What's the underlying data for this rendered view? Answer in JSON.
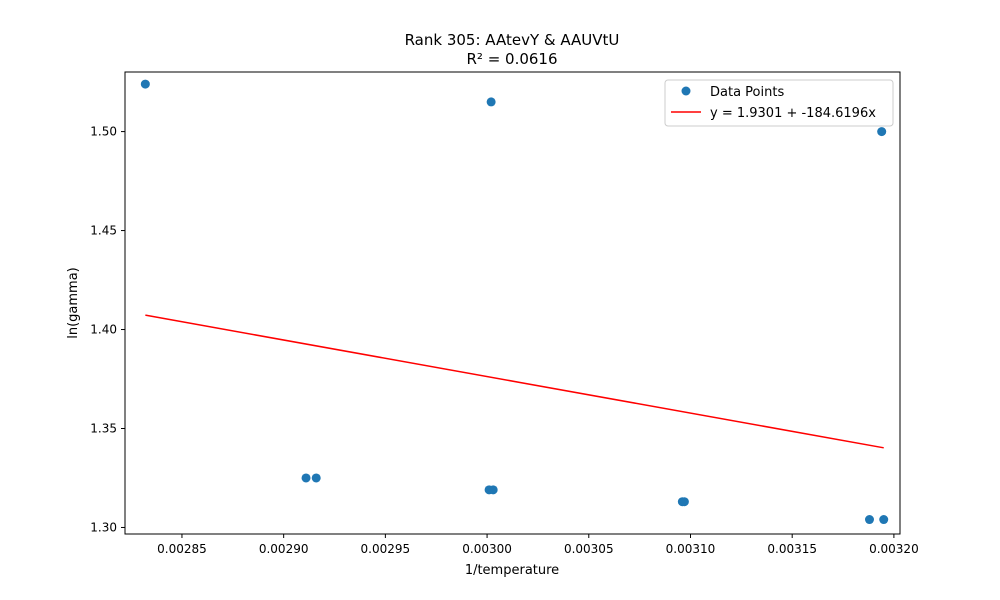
{
  "chart_data": {
    "type": "scatter",
    "title": "Rank 305: AAtevY & AAUVtU",
    "subtitle": "R² = 0.0616",
    "xlabel": "1/temperature",
    "ylabel": "ln(gamma)",
    "xlim": [
      0.002822,
      0.003203
    ],
    "ylim": [
      1.2967,
      1.5301
    ],
    "x_ticks": [
      0.00285,
      0.0029,
      0.00295,
      0.003,
      0.00305,
      0.0031,
      0.00315,
      0.0032
    ],
    "x_tick_labels": [
      "0.00285",
      "0.00290",
      "0.00295",
      "0.00300",
      "0.00305",
      "0.00310",
      "0.00315",
      "0.00320"
    ],
    "y_ticks": [
      1.3,
      1.35,
      1.4,
      1.45,
      1.5
    ],
    "y_tick_labels": [
      "1.30",
      "1.35",
      "1.40",
      "1.45",
      "1.50"
    ],
    "legend_position": "top-right",
    "series": [
      {
        "name": "Data Points",
        "kind": "scatter",
        "color": "#1f77b4",
        "points": [
          {
            "x": 0.002832,
            "y": 1.524
          },
          {
            "x": 0.002911,
            "y": 1.325
          },
          {
            "x": 0.002916,
            "y": 1.325
          },
          {
            "x": 0.003001,
            "y": 1.319
          },
          {
            "x": 0.003003,
            "y": 1.319
          },
          {
            "x": 0.003002,
            "y": 1.515
          },
          {
            "x": 0.003096,
            "y": 1.313
          },
          {
            "x": 0.003097,
            "y": 1.313
          },
          {
            "x": 0.003188,
            "y": 1.304
          },
          {
            "x": 0.003195,
            "y": 1.304
          },
          {
            "x": 0.003194,
            "y": 1.5
          }
        ]
      },
      {
        "name": "y = 1.9301 + -184.6196x",
        "kind": "line",
        "color": "#ff0000",
        "intercept": 1.9301,
        "slope": -184.6196,
        "x_range": [
          0.002832,
          0.003195
        ]
      }
    ]
  }
}
